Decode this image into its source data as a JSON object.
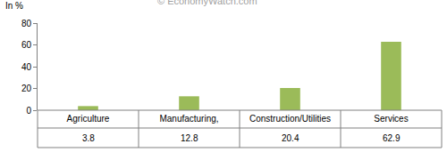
{
  "chart_data": {
    "type": "bar",
    "ylabel": "In %",
    "annotations": [
      "© EconomyWatch.com"
    ],
    "categories": [
      "Agriculture",
      "Manufacturing,",
      "Construction/Utilities",
      "Services"
    ],
    "values": [
      3.8,
      12.8,
      20.4,
      62.9
    ],
    "color": "#9bbb59",
    "ylim": [
      0,
      80
    ],
    "yticks": [
      0,
      20,
      40,
      60,
      80
    ],
    "grid": false
  }
}
